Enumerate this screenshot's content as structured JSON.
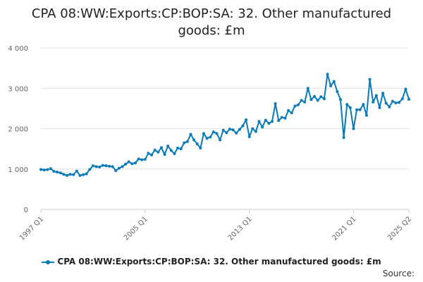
{
  "chart_data": {
    "type": "line",
    "title": "CPA 08:WW:Exports:CP:BOP:SA: 32. Other manufactured goods: £m",
    "xlabel": "",
    "ylabel": "",
    "ylim": [
      0,
      4000
    ],
    "yticks": [
      "0",
      "1 000",
      "2 000",
      "3 000",
      "4 000"
    ],
    "xtick_labels": [
      "1997 Q1",
      "2005 Q1",
      "2013 Q1",
      "2021 Q1",
      "2025 Q2"
    ],
    "grid": "horizontal",
    "legend_position": "bottom",
    "color": "#0a7ab6",
    "series": [
      {
        "name": "CPA 08:WW:Exports:CP:BOP:SA: 32. Other manufactured goods: £m",
        "start": "1997 Q1",
        "frequency": "quarterly",
        "values": [
          990,
          975,
          985,
          1010,
          940,
          925,
          905,
          870,
          840,
          870,
          860,
          950,
          840,
          860,
          880,
          990,
          1080,
          1060,
          1050,
          1090,
          1080,
          1070,
          1060,
          960,
          1020,
          1060,
          1120,
          1180,
          1130,
          1150,
          1250,
          1230,
          1240,
          1390,
          1350,
          1470,
          1420,
          1530,
          1360,
          1570,
          1460,
          1380,
          1520,
          1500,
          1650,
          1680,
          1860,
          1720,
          1620,
          1520,
          1880,
          1760,
          1790,
          1920,
          1880,
          1720,
          1960,
          1900,
          1990,
          1970,
          1890,
          1980,
          2070,
          2220,
          1800,
          2000,
          1930,
          2180,
          2040,
          2210,
          2130,
          2180,
          2620,
          2200,
          2280,
          2260,
          2450,
          2390,
          2560,
          2590,
          2700,
          2660,
          3000,
          2720,
          2800,
          2700,
          2790,
          2740,
          3350,
          3060,
          3170,
          2920,
          2720,
          1780,
          2600,
          2520,
          2000,
          2470,
          2470,
          2600,
          2330,
          3220,
          2660,
          2820,
          2520,
          2880,
          2630,
          2540,
          2680,
          2640,
          2650,
          2740,
          2980,
          2730
        ]
      }
    ]
  },
  "legend": {
    "label": "CPA 08:WW:Exports:CP:BOP:SA: 32. Other manufactured goods: £m"
  },
  "source": {
    "label": "Source:"
  }
}
